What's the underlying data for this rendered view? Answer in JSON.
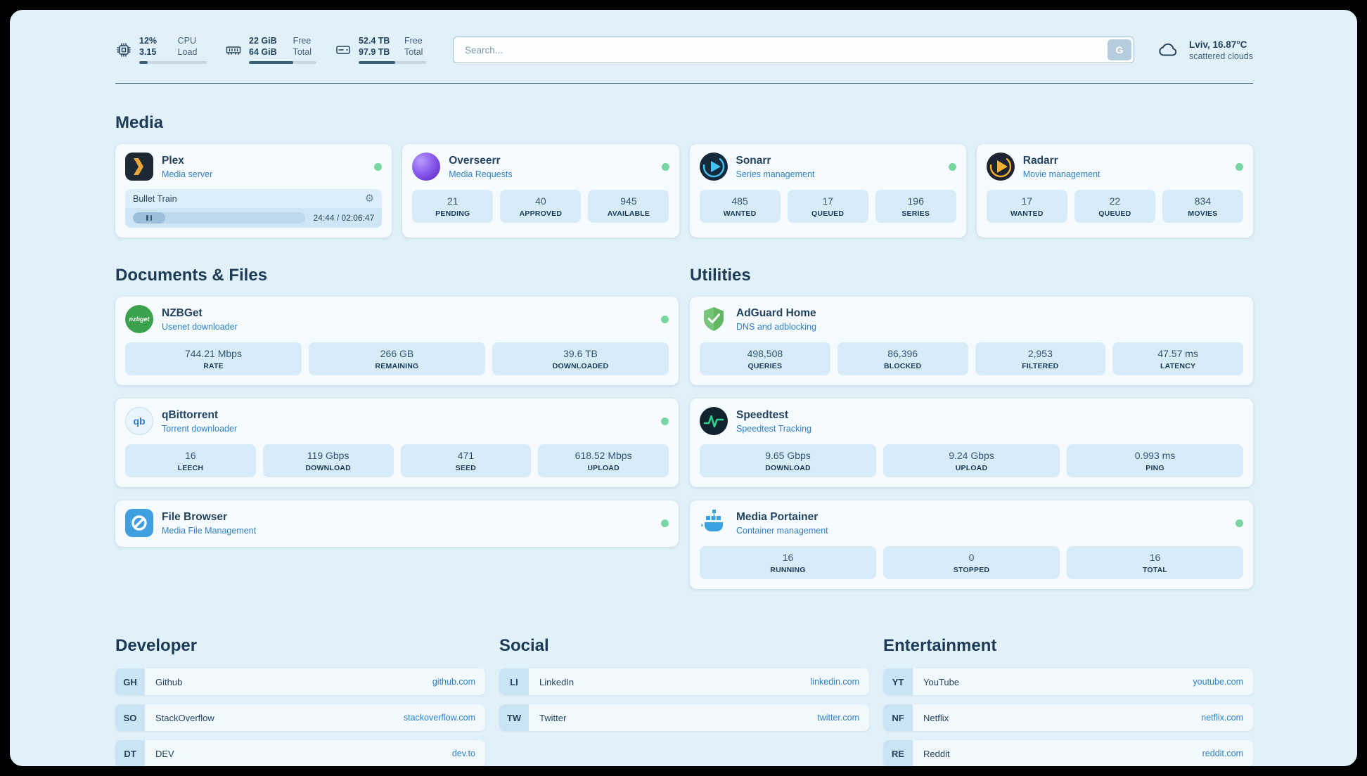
{
  "icons": {
    "settings_glyph": "⚙"
  },
  "colors": {
    "accent_blue": "#2e7fc8",
    "status_green": "#79d6a2",
    "page_bg": "#e1f1fa"
  },
  "topbar": {
    "cpu": {
      "value_top": "12%",
      "label_top": "CPU",
      "value_bottom": "3.15",
      "label_bottom": "Load",
      "percent": 12
    },
    "ram": {
      "value_top": "22 GiB",
      "label_top": "Free",
      "value_bottom": "64 GiB",
      "label_bottom": "Total",
      "percent": 66
    },
    "disk": {
      "value_top": "52.4 TB",
      "label_top": "Free",
      "value_bottom": "97.9 TB",
      "label_bottom": "Total",
      "percent": 54
    },
    "search": {
      "placeholder": "Search...",
      "button_label": "G"
    },
    "weather": {
      "location": "Lviv, 16.87°C",
      "condition": "scattered clouds"
    }
  },
  "media": {
    "title": "Media",
    "plex": {
      "name": "Plex",
      "subtitle": "Media server",
      "now_playing": "Bullet Train",
      "time": "24:44 / 02:06:47",
      "progress_percent": 19
    },
    "overseerr": {
      "name": "Overseerr",
      "subtitle": "Media Requests",
      "stats": [
        {
          "value": "21",
          "label": "PENDING"
        },
        {
          "value": "40",
          "label": "APPROVED"
        },
        {
          "value": "945",
          "label": "AVAILABLE"
        }
      ]
    },
    "sonarr": {
      "name": "Sonarr",
      "subtitle": "Series management",
      "stats": [
        {
          "value": "485",
          "label": "WANTED"
        },
        {
          "value": "17",
          "label": "QUEUED"
        },
        {
          "value": "196",
          "label": "SERIES"
        }
      ]
    },
    "radarr": {
      "name": "Radarr",
      "subtitle": "Movie management",
      "stats": [
        {
          "value": "17",
          "label": "WANTED"
        },
        {
          "value": "22",
          "label": "QUEUED"
        },
        {
          "value": "834",
          "label": "MOVIES"
        }
      ]
    }
  },
  "documents": {
    "title": "Documents & Files",
    "nzbget": {
      "name": "NZBGet",
      "subtitle": "Usenet downloader",
      "icon_text": "nzbget",
      "stats": [
        {
          "value": "744.21 Mbps",
          "label": "RATE"
        },
        {
          "value": "266 GB",
          "label": "REMAINING"
        },
        {
          "value": "39.6 TB",
          "label": "DOWNLOADED"
        }
      ]
    },
    "qbittorrent": {
      "name": "qBittorrent",
      "subtitle": "Torrent downloader",
      "icon_text": "qb",
      "stats": [
        {
          "value": "16",
          "label": "LEECH"
        },
        {
          "value": "119 Gbps",
          "label": "DOWNLOAD"
        },
        {
          "value": "471",
          "label": "SEED"
        },
        {
          "value": "618.52 Mbps",
          "label": "UPLOAD"
        }
      ]
    },
    "filebrowser": {
      "name": "File Browser",
      "subtitle": "Media File Management"
    }
  },
  "utilities": {
    "title": "Utilities",
    "adguard": {
      "name": "AdGuard Home",
      "subtitle": "DNS and adblocking",
      "stats": [
        {
          "value": "498,508",
          "label": "QUERIES"
        },
        {
          "value": "86,396",
          "label": "BLOCKED"
        },
        {
          "value": "2,953",
          "label": "FILTERED"
        },
        {
          "value": "47.57 ms",
          "label": "LATENCY"
        }
      ]
    },
    "speedtest": {
      "name": "Speedtest",
      "subtitle": "Speedtest Tracking",
      "stats": [
        {
          "value": "9.65 Gbps",
          "label": "DOWNLOAD"
        },
        {
          "value": "9.24 Gbps",
          "label": "UPLOAD"
        },
        {
          "value": "0.993 ms",
          "label": "PING"
        }
      ]
    },
    "portainer": {
      "name": "Media Portainer",
      "subtitle": "Container management",
      "stats": [
        {
          "value": "16",
          "label": "RUNNING"
        },
        {
          "value": "0",
          "label": "STOPPED"
        },
        {
          "value": "16",
          "label": "TOTAL"
        }
      ]
    }
  },
  "bookmarks": {
    "developer": {
      "title": "Developer",
      "items": [
        {
          "abbr": "GH",
          "name": "Github",
          "url": "github.com"
        },
        {
          "abbr": "SO",
          "name": "StackOverflow",
          "url": "stackoverflow.com"
        },
        {
          "abbr": "DT",
          "name": "DEV",
          "url": "dev.to"
        }
      ]
    },
    "social": {
      "title": "Social",
      "items": [
        {
          "abbr": "LI",
          "name": "LinkedIn",
          "url": "linkedin.com"
        },
        {
          "abbr": "TW",
          "name": "Twitter",
          "url": "twitter.com"
        }
      ]
    },
    "entertainment": {
      "title": "Entertainment",
      "items": [
        {
          "abbr": "YT",
          "name": "YouTube",
          "url": "youtube.com"
        },
        {
          "abbr": "NF",
          "name": "Netflix",
          "url": "netflix.com"
        },
        {
          "abbr": "RE",
          "name": "Reddit",
          "url": "reddit.com"
        }
      ]
    }
  }
}
